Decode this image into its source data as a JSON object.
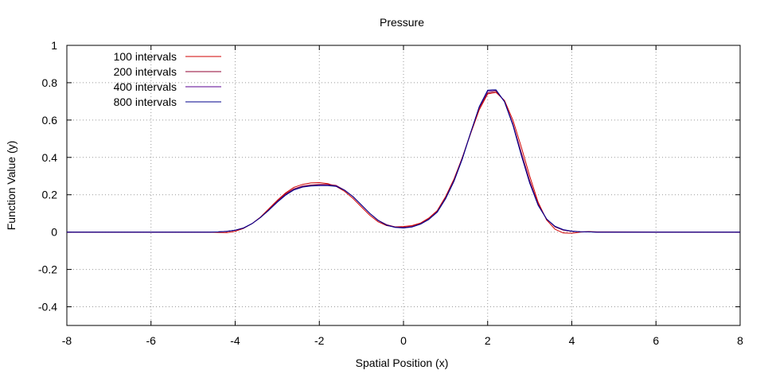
{
  "chart_data": {
    "type": "line",
    "title": "Pressure",
    "xlabel": "Spatial Position (x)",
    "ylabel": "Function Value (y)",
    "xlim": [
      -8,
      8
    ],
    "ylim": [
      -0.5,
      1
    ],
    "xticks": [
      -8,
      -6,
      -4,
      -2,
      0,
      2,
      4,
      6,
      8
    ],
    "xtick_labels": [
      "-8",
      "-6",
      "-4",
      "-2",
      "0",
      "2",
      "4",
      "6",
      "8"
    ],
    "yticks": [
      -0.4,
      -0.2,
      0,
      0.2,
      0.4,
      0.6,
      0.8,
      1
    ],
    "ytick_labels": [
      "-0.4",
      "-0.2",
      "0",
      "0.2",
      "0.4",
      "0.6",
      "0.8",
      "1"
    ],
    "grid": true,
    "legend_position": "top-left",
    "x": [
      -8,
      -4.6,
      -4.4,
      -4.2,
      -4.0,
      -3.8,
      -3.6,
      -3.4,
      -3.2,
      -3.0,
      -2.8,
      -2.6,
      -2.4,
      -2.2,
      -2.0,
      -1.8,
      -1.6,
      -1.4,
      -1.2,
      -1.0,
      -0.8,
      -0.6,
      -0.4,
      -0.2,
      0.0,
      0.2,
      0.4,
      0.6,
      0.8,
      1.0,
      1.2,
      1.4,
      1.6,
      1.8,
      2.0,
      2.2,
      2.4,
      2.6,
      2.8,
      3.0,
      3.2,
      3.4,
      3.6,
      3.8,
      4.0,
      4.2,
      4.4,
      4.6,
      8
    ],
    "series": [
      {
        "name": "100 intervals",
        "color": "#d00000",
        "values": [
          0,
          0,
          -0.002,
          -0.003,
          0.004,
          0.02,
          0.045,
          0.08,
          0.125,
          0.17,
          0.21,
          0.24,
          0.255,
          0.263,
          0.265,
          0.26,
          0.245,
          0.218,
          0.18,
          0.135,
          0.09,
          0.055,
          0.035,
          0.028,
          0.03,
          0.035,
          0.048,
          0.075,
          0.115,
          0.19,
          0.285,
          0.4,
          0.53,
          0.655,
          0.74,
          0.748,
          0.705,
          0.6,
          0.455,
          0.3,
          0.16,
          0.065,
          0.015,
          -0.005,
          -0.006,
          0.0,
          0.003,
          0.001,
          0
        ]
      },
      {
        "name": "200 intervals",
        "color": "#900030",
        "values": [
          0,
          0,
          0.001,
          0.004,
          0.01,
          0.022,
          0.045,
          0.078,
          0.12,
          0.165,
          0.205,
          0.232,
          0.246,
          0.252,
          0.255,
          0.255,
          0.25,
          0.225,
          0.19,
          0.145,
          0.1,
          0.063,
          0.04,
          0.028,
          0.025,
          0.03,
          0.045,
          0.07,
          0.11,
          0.185,
          0.28,
          0.4,
          0.535,
          0.665,
          0.745,
          0.755,
          0.7,
          0.58,
          0.425,
          0.275,
          0.15,
          0.07,
          0.028,
          0.01,
          0.004,
          0.002,
          0.001,
          0,
          0
        ]
      },
      {
        "name": "400 intervals",
        "color": "#5a0090",
        "values": [
          0,
          0,
          0.001,
          0.004,
          0.01,
          0.022,
          0.045,
          0.078,
          0.118,
          0.162,
          0.2,
          0.228,
          0.243,
          0.249,
          0.251,
          0.251,
          0.247,
          0.225,
          0.19,
          0.145,
          0.1,
          0.062,
          0.038,
          0.026,
          0.023,
          0.028,
          0.043,
          0.068,
          0.108,
          0.18,
          0.275,
          0.395,
          0.535,
          0.67,
          0.755,
          0.76,
          0.7,
          0.575,
          0.415,
          0.265,
          0.145,
          0.07,
          0.03,
          0.012,
          0.005,
          0.002,
          0.001,
          0,
          0
        ]
      },
      {
        "name": "800 intervals",
        "color": "#00008b",
        "values": [
          0,
          0,
          0.001,
          0.004,
          0.01,
          0.022,
          0.045,
          0.078,
          0.117,
          0.16,
          0.198,
          0.226,
          0.241,
          0.247,
          0.249,
          0.249,
          0.245,
          0.224,
          0.19,
          0.145,
          0.1,
          0.062,
          0.037,
          0.025,
          0.022,
          0.027,
          0.042,
          0.067,
          0.106,
          0.178,
          0.272,
          0.392,
          0.535,
          0.672,
          0.76,
          0.762,
          0.698,
          0.572,
          0.41,
          0.262,
          0.143,
          0.07,
          0.031,
          0.013,
          0.005,
          0.002,
          0.001,
          0,
          0
        ]
      }
    ]
  }
}
